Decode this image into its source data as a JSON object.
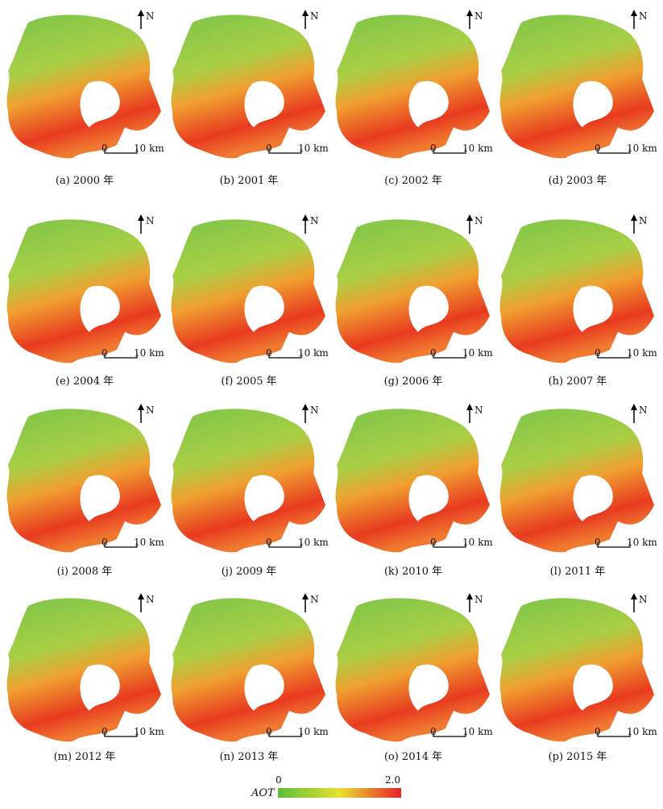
{
  "panels": [
    {
      "caption": "(a) 2000 年"
    },
    {
      "caption": "(b) 2001 年"
    },
    {
      "caption": "(c) 2002 年"
    },
    {
      "caption": "(d) 2003 年"
    },
    {
      "caption": "(e) 2004 年"
    },
    {
      "caption": "(f) 2005 年"
    },
    {
      "caption": "(g) 2006 年"
    },
    {
      "caption": "(h) 2007 年"
    },
    {
      "caption": "(i) 2008 年"
    },
    {
      "caption": "(j) 2009 年"
    },
    {
      "caption": "(k) 2010 年"
    },
    {
      "caption": "(l) 2011 年"
    },
    {
      "caption": "(m) 2012 年"
    },
    {
      "caption": "(n) 2013 年"
    },
    {
      "caption": "(o) 2014 年"
    },
    {
      "caption": "(p) 2015 年"
    }
  ],
  "north": "N",
  "scale_bar": {
    "start": "0",
    "end": "10 km"
  },
  "legend": {
    "title": "AOT",
    "min": "0",
    "max": "2.0"
  }
}
